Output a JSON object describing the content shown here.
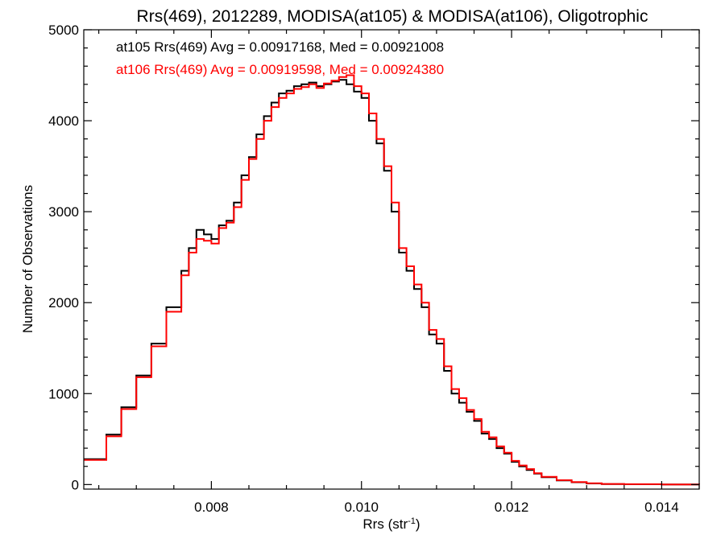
{
  "chart_data": {
    "type": "line",
    "title": "Rrs(469), 2012289, MODISA(at105) & MODISA(at106), Oligotrophic",
    "xlabel": "Rrs (str",
    "xlabel_superscript": "-1",
    "xlabel_close": ")",
    "ylabel": "Number of Observations",
    "xlim": [
      0.0063,
      0.0145
    ],
    "ylim": [
      -50,
      5000
    ],
    "xticks": [
      0.008,
      0.01,
      0.012,
      0.014
    ],
    "xtick_labels": [
      "0.008",
      "0.010",
      "0.012",
      "0.014"
    ],
    "yticks": [
      0,
      1000,
      2000,
      3000,
      4000,
      5000
    ],
    "ytick_labels": [
      "0",
      "1000",
      "2000",
      "3000",
      "4000",
      "5000"
    ],
    "grid": false,
    "annotations": [
      {
        "text": "at105 Rrs(469) Avg = 0.00917168, Med = 0.00921008",
        "color": "#000000"
      },
      {
        "text": "at106 Rrs(469) Avg = 0.00919598, Med = 0.00924380",
        "color": "#ff0000"
      }
    ],
    "series": [
      {
        "color": "#000000",
        "x": [
          0.0063,
          0.0066,
          0.0068,
          0.007,
          0.0072,
          0.0074,
          0.0076,
          0.0077,
          0.0078,
          0.0079,
          0.008,
          0.0081,
          0.0082,
          0.0083,
          0.0084,
          0.0085,
          0.0086,
          0.0087,
          0.0088,
          0.0089,
          0.009,
          0.0091,
          0.0092,
          0.0093,
          0.0094,
          0.0095,
          0.0096,
          0.0097,
          0.0098,
          0.0099,
          0.01,
          0.0101,
          0.0102,
          0.0103,
          0.0104,
          0.0105,
          0.0106,
          0.0107,
          0.0108,
          0.0109,
          0.011,
          0.0111,
          0.0112,
          0.0113,
          0.0114,
          0.0115,
          0.0116,
          0.0117,
          0.0118,
          0.0119,
          0.012,
          0.0121,
          0.0122,
          0.0123,
          0.0124,
          0.0126,
          0.0128,
          0.013,
          0.0132,
          0.0135,
          0.014,
          0.0145
        ],
        "y": [
          280,
          550,
          850,
          1200,
          1550,
          1950,
          2350,
          2600,
          2800,
          2750,
          2700,
          2850,
          2900,
          3100,
          3400,
          3600,
          3850,
          4050,
          4200,
          4300,
          4330,
          4380,
          4400,
          4420,
          4380,
          4400,
          4430,
          4450,
          4400,
          4320,
          4250,
          4000,
          3750,
          3450,
          3000,
          2550,
          2350,
          2150,
          1950,
          1650,
          1550,
          1250,
          1000,
          900,
          800,
          700,
          560,
          500,
          400,
          340,
          250,
          200,
          160,
          120,
          80,
          45,
          25,
          12,
          6,
          3,
          1,
          0
        ]
      },
      {
        "color": "#ff0000",
        "x": [
          0.0063,
          0.0066,
          0.0068,
          0.007,
          0.0072,
          0.0074,
          0.0076,
          0.0077,
          0.0078,
          0.0079,
          0.008,
          0.0081,
          0.0082,
          0.0083,
          0.0084,
          0.0085,
          0.0086,
          0.0087,
          0.0088,
          0.0089,
          0.009,
          0.0091,
          0.0092,
          0.0093,
          0.0094,
          0.0095,
          0.0096,
          0.0097,
          0.0098,
          0.0099,
          0.01,
          0.0101,
          0.0102,
          0.0103,
          0.0104,
          0.0105,
          0.0106,
          0.0107,
          0.0108,
          0.0109,
          0.011,
          0.0111,
          0.0112,
          0.0113,
          0.0114,
          0.0115,
          0.0116,
          0.0117,
          0.0118,
          0.0119,
          0.012,
          0.0121,
          0.0122,
          0.0123,
          0.0124,
          0.0126,
          0.0128,
          0.013,
          0.0132,
          0.0135,
          0.014,
          0.0145
        ],
        "y": [
          270,
          530,
          830,
          1180,
          1520,
          1900,
          2300,
          2550,
          2700,
          2680,
          2650,
          2820,
          2880,
          3050,
          3350,
          3580,
          3800,
          4000,
          4150,
          4250,
          4300,
          4350,
          4370,
          4400,
          4360,
          4410,
          4440,
          4480,
          4500,
          4380,
          4300,
          4080,
          3800,
          3500,
          3100,
          2600,
          2400,
          2200,
          2000,
          1700,
          1600,
          1300,
          1050,
          950,
          820,
          720,
          580,
          520,
          420,
          350,
          260,
          210,
          170,
          125,
          85,
          48,
          28,
          14,
          7,
          4,
          1,
          0
        ]
      }
    ]
  }
}
